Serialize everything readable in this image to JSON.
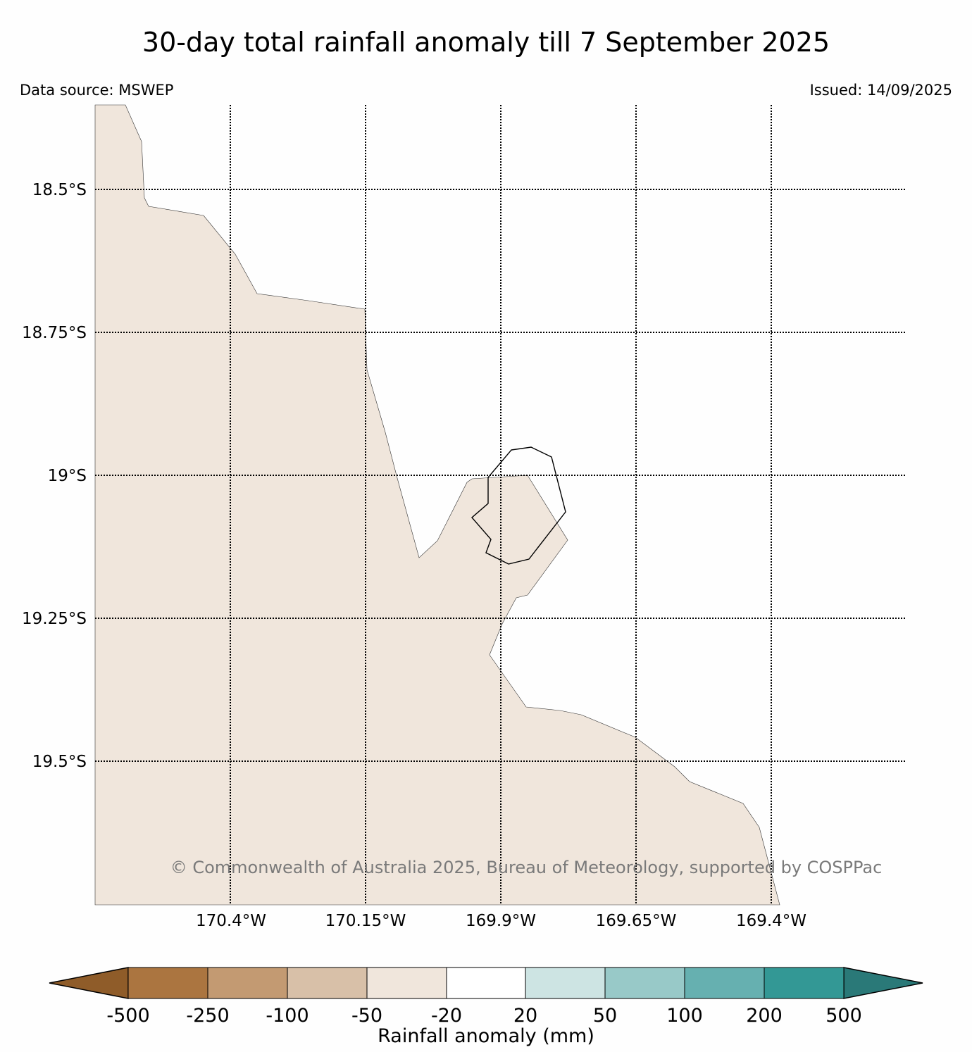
{
  "title": "30-day total rainfall anomaly till 7 September 2025",
  "data_source": "Data source: MSWEP",
  "issued": "Issued: 14/09/2025",
  "copyright": "© Commonwealth of Australia 2025, Bureau of Meteorology, supported by COSPPac",
  "map": {
    "lon_labels": [
      "170.4°W",
      "170.15°W",
      "169.9°W",
      "169.65°W",
      "169.4°W"
    ],
    "lat_labels": [
      "18.5°S",
      "18.75°S",
      "19°S",
      "19.25°S",
      "19.5°S"
    ],
    "land_color": "#f0e6dc",
    "grid": "dotted"
  },
  "colorbar": {
    "label": "Rainfall anomaly (mm)",
    "ticks": [
      "-500",
      "-250",
      "-100",
      "-50",
      "-20",
      "20",
      "50",
      "100",
      "200",
      "500"
    ],
    "colors": [
      "#ab7540",
      "#c39a72",
      "#d8c0a8",
      "#f0e6dc",
      "#ffffff",
      "#cde4e3",
      "#98c9c8",
      "#66b0b0",
      "#339895"
    ],
    "under_color": "#8f5c29",
    "over_color": "#2a7978"
  }
}
